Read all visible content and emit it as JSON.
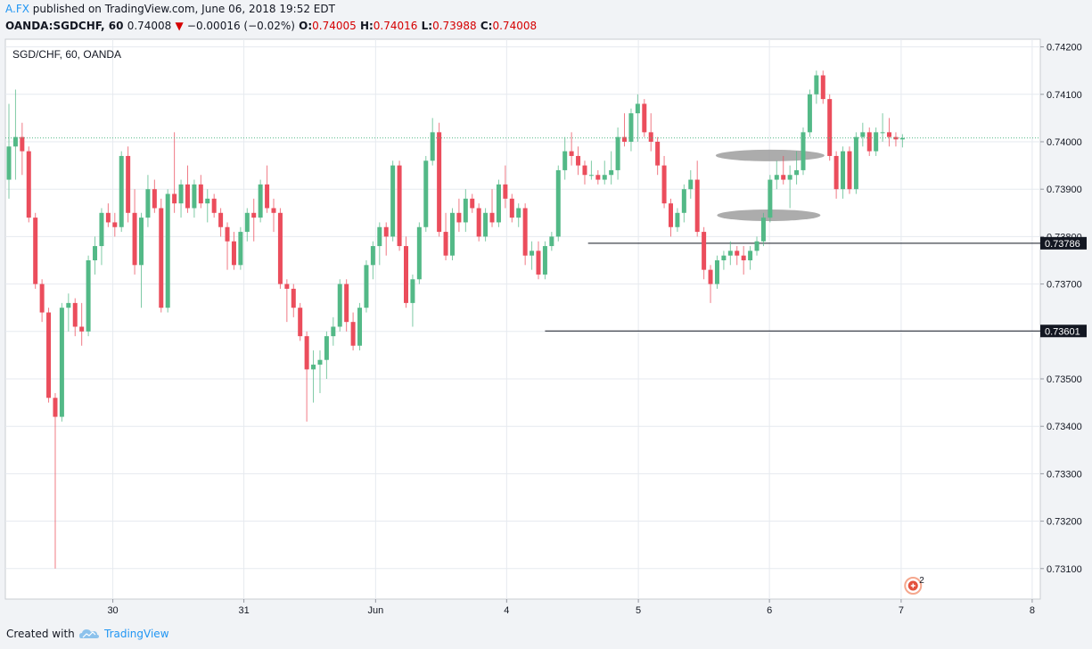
{
  "header": {
    "author": "A.FX",
    "published": "published on TradingView.com, June 06, 2018 19:52 EDT",
    "symbol": "OANDA:SGDCHF, 60",
    "last": "0.74008",
    "change": "−0.00016 (−0.02%)",
    "o_label": "O:",
    "o_value": "0.74005",
    "h_label": "H:",
    "h_value": "0.74016",
    "l_label": "L:",
    "l_value": "0.73988",
    "c_label": "C:",
    "c_value": "0.74008"
  },
  "footer": {
    "created_with": "Created with",
    "brand": "TradingView"
  },
  "colors": {
    "up": "#53b987",
    "down": "#eb4d5c",
    "grid": "#e6eaef",
    "price_line": "#53b987",
    "level_label_bg": "#131722",
    "annotation_ellipse": "#9e9e9e",
    "author": "#2196f3"
  },
  "chart_data": {
    "type": "candlestick",
    "title": "SGD/CHF, 60, OANDA",
    "y_ticks": [
      "0.74200",
      "0.74100",
      "0.74000",
      "0.73900",
      "0.73800",
      "0.73700",
      "0.73600",
      "0.73500",
      "0.73400",
      "0.73300",
      "0.73200",
      "0.73100"
    ],
    "ylim": [
      0.7306,
      0.7424
    ],
    "x_ticks": [
      {
        "label": "30",
        "t": 15.7
      },
      {
        "label": "31",
        "t": 35.5
      },
      {
        "label": "Jun",
        "t": 55.4
      },
      {
        "label": "4",
        "t": 75.2
      },
      {
        "label": "5",
        "t": 95.1
      },
      {
        "label": "6",
        "t": 114.9
      },
      {
        "label": "7",
        "t": 134.8
      },
      {
        "label": "8",
        "t": 154.6
      }
    ],
    "xlim": [
      0,
      154.6
    ],
    "last_price": 0.74008,
    "levels": [
      {
        "label": "0.73786",
        "value": 0.73786,
        "t_start": 87.5
      },
      {
        "label": "0.73601",
        "value": 0.73601,
        "t_start": 81.0
      }
    ],
    "annotations": [
      {
        "type": "ellipse",
        "t": 115.0,
        "value": 0.73971
      },
      {
        "type": "ellipse",
        "t": 114.8,
        "value": 0.73845
      }
    ],
    "event_marker": {
      "count": "2",
      "t": 136.6
    },
    "candles": [
      {
        "t": 0.0,
        "o": 0.7392,
        "h": 0.7408,
        "l": 0.7388,
        "c": 0.7399
      },
      {
        "t": 1.0,
        "o": 0.7399,
        "h": 0.7411,
        "l": 0.7392,
        "c": 0.7401
      },
      {
        "t": 2.0,
        "o": 0.7401,
        "h": 0.7404,
        "l": 0.7393,
        "c": 0.7398
      },
      {
        "t": 3.0,
        "o": 0.7398,
        "h": 0.7399,
        "l": 0.7383,
        "c": 0.7384
      },
      {
        "t": 4.0,
        "o": 0.7384,
        "h": 0.7385,
        "l": 0.7369,
        "c": 0.737
      },
      {
        "t": 5.0,
        "o": 0.737,
        "h": 0.7371,
        "l": 0.7362,
        "c": 0.7364
      },
      {
        "t": 6.0,
        "o": 0.7364,
        "h": 0.7365,
        "l": 0.7345,
        "c": 0.7346
      },
      {
        "t": 7.0,
        "o": 0.7346,
        "h": 0.7347,
        "l": 0.731,
        "c": 0.7342
      },
      {
        "t": 8.0,
        "o": 0.7342,
        "h": 0.7366,
        "l": 0.7341,
        "c": 0.7365
      },
      {
        "t": 9.0,
        "o": 0.7365,
        "h": 0.7368,
        "l": 0.736,
        "c": 0.7366
      },
      {
        "t": 10.0,
        "o": 0.7366,
        "h": 0.7367,
        "l": 0.7359,
        "c": 0.7361
      },
      {
        "t": 11.0,
        "o": 0.7361,
        "h": 0.7366,
        "l": 0.7357,
        "c": 0.736
      },
      {
        "t": 12.0,
        "o": 0.736,
        "h": 0.7376,
        "l": 0.7359,
        "c": 0.7375
      },
      {
        "t": 13.0,
        "o": 0.7375,
        "h": 0.738,
        "l": 0.7372,
        "c": 0.7378
      },
      {
        "t": 14.0,
        "o": 0.7378,
        "h": 0.7386,
        "l": 0.7374,
        "c": 0.7385
      },
      {
        "t": 15.0,
        "o": 0.7385,
        "h": 0.7387,
        "l": 0.7382,
        "c": 0.7383
      },
      {
        "t": 16.0,
        "o": 0.7383,
        "h": 0.7385,
        "l": 0.738,
        "c": 0.7382
      },
      {
        "t": 17.0,
        "o": 0.7382,
        "h": 0.7398,
        "l": 0.7381,
        "c": 0.7397
      },
      {
        "t": 18.0,
        "o": 0.7397,
        "h": 0.7399,
        "l": 0.7383,
        "c": 0.7385
      },
      {
        "t": 19.0,
        "o": 0.7385,
        "h": 0.739,
        "l": 0.7372,
        "c": 0.7374
      },
      {
        "t": 20.0,
        "o": 0.7374,
        "h": 0.7385,
        "l": 0.7365,
        "c": 0.7384
      },
      {
        "t": 21.0,
        "o": 0.7384,
        "h": 0.7393,
        "l": 0.7382,
        "c": 0.739
      },
      {
        "t": 22.0,
        "o": 0.739,
        "h": 0.7392,
        "l": 0.7385,
        "c": 0.7386
      },
      {
        "t": 23.0,
        "o": 0.7386,
        "h": 0.7388,
        "l": 0.7364,
        "c": 0.7365
      },
      {
        "t": 24.0,
        "o": 0.7365,
        "h": 0.739,
        "l": 0.7364,
        "c": 0.7389
      },
      {
        "t": 25.0,
        "o": 0.7389,
        "h": 0.7402,
        "l": 0.7385,
        "c": 0.7387
      },
      {
        "t": 26.0,
        "o": 0.7387,
        "h": 0.7392,
        "l": 0.7384,
        "c": 0.7391
      },
      {
        "t": 27.0,
        "o": 0.7391,
        "h": 0.7395,
        "l": 0.7385,
        "c": 0.7386
      },
      {
        "t": 28.0,
        "o": 0.7386,
        "h": 0.7392,
        "l": 0.7384,
        "c": 0.7391
      },
      {
        "t": 29.0,
        "o": 0.7391,
        "h": 0.7393,
        "l": 0.7386,
        "c": 0.7387
      },
      {
        "t": 30.0,
        "o": 0.7387,
        "h": 0.739,
        "l": 0.7383,
        "c": 0.7388
      },
      {
        "t": 31.0,
        "o": 0.7388,
        "h": 0.7389,
        "l": 0.7384,
        "c": 0.7385
      },
      {
        "t": 32.0,
        "o": 0.7385,
        "h": 0.7386,
        "l": 0.738,
        "c": 0.7382
      },
      {
        "t": 33.0,
        "o": 0.7382,
        "h": 0.7383,
        "l": 0.7373,
        "c": 0.7379
      },
      {
        "t": 34.0,
        "o": 0.7379,
        "h": 0.7381,
        "l": 0.7373,
        "c": 0.7374
      },
      {
        "t": 35.0,
        "o": 0.7374,
        "h": 0.7382,
        "l": 0.7373,
        "c": 0.7381
      },
      {
        "t": 36.0,
        "o": 0.7381,
        "h": 0.7386,
        "l": 0.7379,
        "c": 0.7385
      },
      {
        "t": 37.0,
        "o": 0.7385,
        "h": 0.7388,
        "l": 0.7379,
        "c": 0.7384
      },
      {
        "t": 38.0,
        "o": 0.7384,
        "h": 0.7392,
        "l": 0.7383,
        "c": 0.7391
      },
      {
        "t": 39.0,
        "o": 0.7391,
        "h": 0.7395,
        "l": 0.7385,
        "c": 0.7386
      },
      {
        "t": 40.0,
        "o": 0.7386,
        "h": 0.7388,
        "l": 0.7381,
        "c": 0.7385
      },
      {
        "t": 41.0,
        "o": 0.7385,
        "h": 0.7386,
        "l": 0.7369,
        "c": 0.737
      },
      {
        "t": 42.0,
        "o": 0.737,
        "h": 0.7371,
        "l": 0.7362,
        "c": 0.7369
      },
      {
        "t": 43.0,
        "o": 0.7369,
        "h": 0.737,
        "l": 0.7363,
        "c": 0.7365
      },
      {
        "t": 44.0,
        "o": 0.7365,
        "h": 0.7366,
        "l": 0.7358,
        "c": 0.7359
      },
      {
        "t": 45.0,
        "o": 0.7359,
        "h": 0.736,
        "l": 0.7341,
        "c": 0.7352
      },
      {
        "t": 46.0,
        "o": 0.7352,
        "h": 0.7356,
        "l": 0.7345,
        "c": 0.7353
      },
      {
        "t": 47.0,
        "o": 0.7353,
        "h": 0.7356,
        "l": 0.7347,
        "c": 0.7354
      },
      {
        "t": 48.0,
        "o": 0.7354,
        "h": 0.736,
        "l": 0.735,
        "c": 0.7359
      },
      {
        "t": 49.0,
        "o": 0.7359,
        "h": 0.7363,
        "l": 0.7357,
        "c": 0.7361
      },
      {
        "t": 50.0,
        "o": 0.7361,
        "h": 0.7371,
        "l": 0.736,
        "c": 0.737
      },
      {
        "t": 51.0,
        "o": 0.737,
        "h": 0.7371,
        "l": 0.736,
        "c": 0.7362
      },
      {
        "t": 52.0,
        "o": 0.7362,
        "h": 0.7364,
        "l": 0.7356,
        "c": 0.7357
      },
      {
        "t": 53.0,
        "o": 0.7357,
        "h": 0.7366,
        "l": 0.7356,
        "c": 0.7365
      },
      {
        "t": 54.0,
        "o": 0.7365,
        "h": 0.7375,
        "l": 0.7364,
        "c": 0.7374
      },
      {
        "t": 55.0,
        "o": 0.7374,
        "h": 0.7379,
        "l": 0.7371,
        "c": 0.7378
      },
      {
        "t": 56.0,
        "o": 0.7378,
        "h": 0.7383,
        "l": 0.7374,
        "c": 0.7382
      },
      {
        "t": 57.0,
        "o": 0.7382,
        "h": 0.7383,
        "l": 0.7376,
        "c": 0.738
      },
      {
        "t": 58.0,
        "o": 0.738,
        "h": 0.7396,
        "l": 0.7379,
        "c": 0.7395
      },
      {
        "t": 59.0,
        "o": 0.7395,
        "h": 0.7396,
        "l": 0.7377,
        "c": 0.7378
      },
      {
        "t": 60.0,
        "o": 0.7378,
        "h": 0.738,
        "l": 0.7365,
        "c": 0.7366
      },
      {
        "t": 61.0,
        "o": 0.7366,
        "h": 0.7372,
        "l": 0.7361,
        "c": 0.7371
      },
      {
        "t": 62.0,
        "o": 0.7371,
        "h": 0.7383,
        "l": 0.737,
        "c": 0.7382
      },
      {
        "t": 63.0,
        "o": 0.7382,
        "h": 0.7397,
        "l": 0.7381,
        "c": 0.7396
      },
      {
        "t": 64.0,
        "o": 0.7396,
        "h": 0.7405,
        "l": 0.7395,
        "c": 0.7402
      },
      {
        "t": 65.0,
        "o": 0.7402,
        "h": 0.7404,
        "l": 0.738,
        "c": 0.7381
      },
      {
        "t": 66.0,
        "o": 0.7381,
        "h": 0.7385,
        "l": 0.7375,
        "c": 0.7376
      },
      {
        "t": 67.0,
        "o": 0.7376,
        "h": 0.7386,
        "l": 0.7375,
        "c": 0.7385
      },
      {
        "t": 68.0,
        "o": 0.7385,
        "h": 0.7388,
        "l": 0.7381,
        "c": 0.7383
      },
      {
        "t": 69.0,
        "o": 0.7383,
        "h": 0.739,
        "l": 0.7381,
        "c": 0.7388
      },
      {
        "t": 70.0,
        "o": 0.7388,
        "h": 0.7389,
        "l": 0.7385,
        "c": 0.7386
      },
      {
        "t": 71.0,
        "o": 0.7386,
        "h": 0.7387,
        "l": 0.7379,
        "c": 0.738
      },
      {
        "t": 72.0,
        "o": 0.738,
        "h": 0.7386,
        "l": 0.7379,
        "c": 0.7385
      },
      {
        "t": 73.0,
        "o": 0.7385,
        "h": 0.739,
        "l": 0.7382,
        "c": 0.7383
      },
      {
        "t": 74.0,
        "o": 0.7383,
        "h": 0.7392,
        "l": 0.7382,
        "c": 0.7391
      },
      {
        "t": 75.0,
        "o": 0.7391,
        "h": 0.7395,
        "l": 0.7386,
        "c": 0.7388
      },
      {
        "t": 76.0,
        "o": 0.7388,
        "h": 0.7389,
        "l": 0.7383,
        "c": 0.7384
      },
      {
        "t": 77.0,
        "o": 0.7384,
        "h": 0.7387,
        "l": 0.7382,
        "c": 0.7386
      },
      {
        "t": 78.0,
        "o": 0.7386,
        "h": 0.7387,
        "l": 0.7374,
        "c": 0.7376
      },
      {
        "t": 79.0,
        "o": 0.7376,
        "h": 0.7379,
        "l": 0.7373,
        "c": 0.7377
      },
      {
        "t": 80.0,
        "o": 0.7377,
        "h": 0.7379,
        "l": 0.7371,
        "c": 0.7372
      },
      {
        "t": 81.0,
        "o": 0.7372,
        "h": 0.7379,
        "l": 0.7371,
        "c": 0.7378
      },
      {
        "t": 82.0,
        "o": 0.7378,
        "h": 0.7381,
        "l": 0.7377,
        "c": 0.738
      },
      {
        "t": 83.0,
        "o": 0.738,
        "h": 0.7395,
        "l": 0.7379,
        "c": 0.7394
      },
      {
        "t": 84.0,
        "o": 0.7394,
        "h": 0.7401,
        "l": 0.7392,
        "c": 0.7398
      },
      {
        "t": 85.0,
        "o": 0.7398,
        "h": 0.7402,
        "l": 0.7395,
        "c": 0.7397
      },
      {
        "t": 86.0,
        "o": 0.7397,
        "h": 0.7399,
        "l": 0.7393,
        "c": 0.7395
      },
      {
        "t": 87.0,
        "o": 0.7395,
        "h": 0.7396,
        "l": 0.7391,
        "c": 0.7393
      },
      {
        "t": 88.0,
        "o": 0.7393,
        "h": 0.7396,
        "l": 0.7392,
        "c": 0.7393
      },
      {
        "t": 89.0,
        "o": 0.7393,
        "h": 0.7394,
        "l": 0.7391,
        "c": 0.7392
      },
      {
        "t": 90.0,
        "o": 0.7392,
        "h": 0.7396,
        "l": 0.7391,
        "c": 0.7393
      },
      {
        "t": 91.0,
        "o": 0.7393,
        "h": 0.7398,
        "l": 0.7391,
        "c": 0.7394
      },
      {
        "t": 92.0,
        "o": 0.7394,
        "h": 0.7403,
        "l": 0.7392,
        "c": 0.7401
      },
      {
        "t": 93.0,
        "o": 0.7401,
        "h": 0.7406,
        "l": 0.7399,
        "c": 0.74
      },
      {
        "t": 94.0,
        "o": 0.74,
        "h": 0.7407,
        "l": 0.7398,
        "c": 0.7406
      },
      {
        "t": 95.0,
        "o": 0.7406,
        "h": 0.741,
        "l": 0.74,
        "c": 0.7408
      },
      {
        "t": 96.0,
        "o": 0.7408,
        "h": 0.7409,
        "l": 0.7401,
        "c": 0.7402
      },
      {
        "t": 97.0,
        "o": 0.7402,
        "h": 0.7406,
        "l": 0.7398,
        "c": 0.74
      },
      {
        "t": 98.0,
        "o": 0.74,
        "h": 0.7401,
        "l": 0.7393,
        "c": 0.7395
      },
      {
        "t": 99.0,
        "o": 0.7395,
        "h": 0.7397,
        "l": 0.7386,
        "c": 0.7387
      },
      {
        "t": 100.0,
        "o": 0.7387,
        "h": 0.7388,
        "l": 0.738,
        "c": 0.7382
      },
      {
        "t": 101.0,
        "o": 0.7382,
        "h": 0.7386,
        "l": 0.7381,
        "c": 0.7385
      },
      {
        "t": 102.0,
        "o": 0.7385,
        "h": 0.7391,
        "l": 0.7383,
        "c": 0.739
      },
      {
        "t": 103.0,
        "o": 0.739,
        "h": 0.7394,
        "l": 0.7388,
        "c": 0.7392
      },
      {
        "t": 104.0,
        "o": 0.7392,
        "h": 0.7396,
        "l": 0.738,
        "c": 0.7381
      },
      {
        "t": 105.0,
        "o": 0.7381,
        "h": 0.7382,
        "l": 0.7371,
        "c": 0.7373
      },
      {
        "t": 106.0,
        "o": 0.7373,
        "h": 0.7374,
        "l": 0.7366,
        "c": 0.737
      },
      {
        "t": 107.0,
        "o": 0.737,
        "h": 0.7376,
        "l": 0.7369,
        "c": 0.7375
      },
      {
        "t": 108.0,
        "o": 0.7375,
        "h": 0.7377,
        "l": 0.7373,
        "c": 0.7376
      },
      {
        "t": 109.0,
        "o": 0.7376,
        "h": 0.7379,
        "l": 0.7374,
        "c": 0.7377
      },
      {
        "t": 110.0,
        "o": 0.7377,
        "h": 0.7378,
        "l": 0.7374,
        "c": 0.7376
      },
      {
        "t": 111.0,
        "o": 0.7376,
        "h": 0.7378,
        "l": 0.7372,
        "c": 0.7375
      },
      {
        "t": 112.0,
        "o": 0.7375,
        "h": 0.7378,
        "l": 0.7373,
        "c": 0.7377
      },
      {
        "t": 113.0,
        "o": 0.7377,
        "h": 0.738,
        "l": 0.7376,
        "c": 0.7379
      },
      {
        "t": 114.0,
        "o": 0.7379,
        "h": 0.7385,
        "l": 0.7378,
        "c": 0.7384
      },
      {
        "t": 115.0,
        "o": 0.7384,
        "h": 0.7393,
        "l": 0.7383,
        "c": 0.7392
      },
      {
        "t": 116.0,
        "o": 0.7392,
        "h": 0.7396,
        "l": 0.739,
        "c": 0.7393
      },
      {
        "t": 117.0,
        "o": 0.7393,
        "h": 0.7397,
        "l": 0.7391,
        "c": 0.7392
      },
      {
        "t": 118.0,
        "o": 0.7392,
        "h": 0.7395,
        "l": 0.7386,
        "c": 0.7393
      },
      {
        "t": 119.0,
        "o": 0.7393,
        "h": 0.7398,
        "l": 0.7391,
        "c": 0.7394
      },
      {
        "t": 120.0,
        "o": 0.7394,
        "h": 0.7403,
        "l": 0.7393,
        "c": 0.7402
      },
      {
        "t": 121.0,
        "o": 0.7402,
        "h": 0.7411,
        "l": 0.7401,
        "c": 0.741
      },
      {
        "t": 122.0,
        "o": 0.741,
        "h": 0.7415,
        "l": 0.7408,
        "c": 0.7414
      },
      {
        "t": 123.0,
        "o": 0.7414,
        "h": 0.7415,
        "l": 0.7408,
        "c": 0.7409
      },
      {
        "t": 124.0,
        "o": 0.7409,
        "h": 0.741,
        "l": 0.7396,
        "c": 0.7397
      },
      {
        "t": 125.0,
        "o": 0.7397,
        "h": 0.7398,
        "l": 0.7388,
        "c": 0.739
      },
      {
        "t": 126.0,
        "o": 0.739,
        "h": 0.7399,
        "l": 0.7388,
        "c": 0.7398
      },
      {
        "t": 127.0,
        "o": 0.7398,
        "h": 0.7399,
        "l": 0.7389,
        "c": 0.739
      },
      {
        "t": 128.0,
        "o": 0.739,
        "h": 0.7402,
        "l": 0.7389,
        "c": 0.7401
      },
      {
        "t": 129.0,
        "o": 0.7401,
        "h": 0.7404,
        "l": 0.7399,
        "c": 0.7402
      },
      {
        "t": 130.0,
        "o": 0.7402,
        "h": 0.7403,
        "l": 0.7397,
        "c": 0.7398
      },
      {
        "t": 131.0,
        "o": 0.7398,
        "h": 0.7403,
        "l": 0.7397,
        "c": 0.7402
      },
      {
        "t": 132.0,
        "o": 0.7402,
        "h": 0.7406,
        "l": 0.74,
        "c": 0.7402
      },
      {
        "t": 133.0,
        "o": 0.7402,
        "h": 0.7405,
        "l": 0.7399,
        "c": 0.7401
      },
      {
        "t": 134.0,
        "o": 0.7401,
        "h": 0.7402,
        "l": 0.7399,
        "c": 0.74005
      },
      {
        "t": 135.0,
        "o": 0.74005,
        "h": 0.74016,
        "l": 0.73988,
        "c": 0.74008
      }
    ]
  }
}
